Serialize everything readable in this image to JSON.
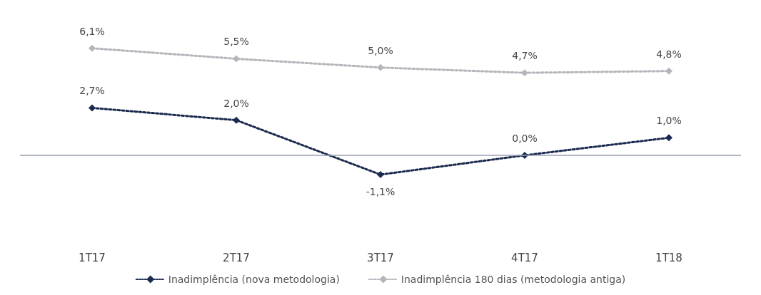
{
  "chart_data": {
    "type": "line",
    "categories": [
      "1T17",
      "2T17",
      "3T17",
      "4T17",
      "1T18"
    ],
    "series": [
      {
        "name": "Inadimplência (nova metodologia)",
        "color": "#1b2a4e",
        "values": [
          2.7,
          2.0,
          -1.1,
          0.0,
          1.0
        ],
        "value_labels": [
          "2,7%",
          "2,0%",
          "-1,1%",
          "0,0%",
          "1,0%"
        ]
      },
      {
        "name": "Inadimplência 180 dias (metodologia antiga)",
        "color": "#b4b6bb",
        "values": [
          6.1,
          5.5,
          5.0,
          4.7,
          4.8
        ],
        "value_labels": [
          "6,1%",
          "5,5%",
          "5,0%",
          "4,7%",
          "4,8%"
        ]
      }
    ],
    "ref_lines": [
      {
        "axis": "y",
        "value": 0,
        "color": "#9aa3b0",
        "line_style": "solid"
      }
    ],
    "marker": "diamond",
    "line_style": "dotted",
    "legend": "bottom",
    "grid": false
  }
}
